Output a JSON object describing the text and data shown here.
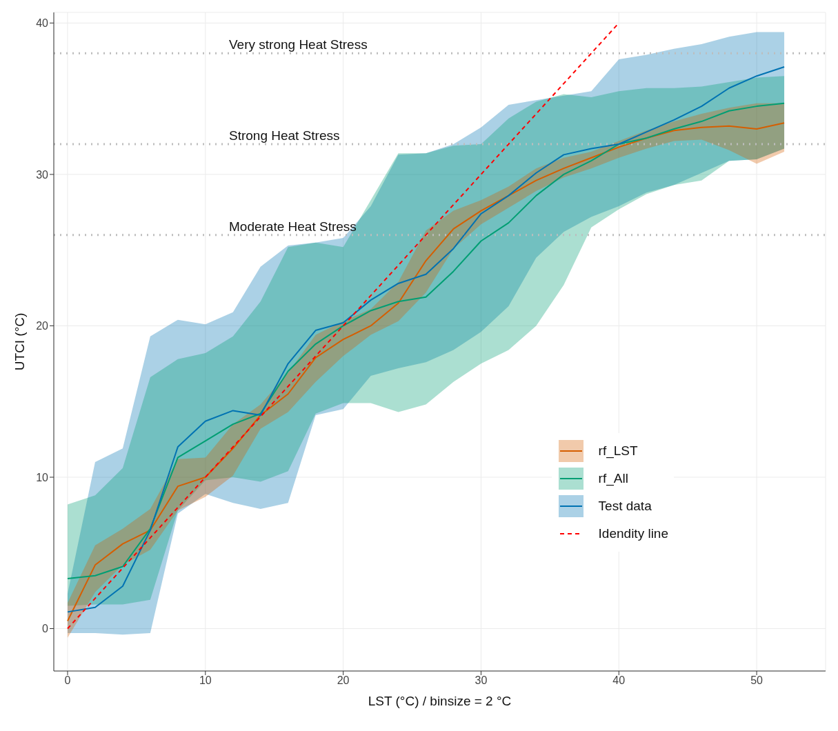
{
  "chart_data": {
    "type": "line",
    "xlabel": "LST (°C) / binsize = 2 °C",
    "ylabel": "UTCI (°C)",
    "x": [
      0,
      2,
      4,
      6,
      8,
      10,
      12,
      14,
      16,
      18,
      20,
      22,
      24,
      26,
      28,
      30,
      32,
      34,
      36,
      38,
      40,
      42,
      44,
      46,
      48,
      50,
      52
    ],
    "xlim": [
      -1,
      55
    ],
    "xticks": [
      0,
      10,
      20,
      30,
      40,
      50
    ],
    "ylim": [
      -2.8,
      40.7
    ],
    "yticks": [
      0,
      10,
      20,
      30,
      40
    ],
    "grid": true,
    "legend": "right",
    "series": [
      {
        "name": "rf_LST",
        "color": "#d55e00",
        "values": [
          0.5,
          4.2,
          5.6,
          6.5,
          9.4,
          10.0,
          11.9,
          14.1,
          15.5,
          17.9,
          19.1,
          20.0,
          21.5,
          24.3,
          26.4,
          27.6,
          28.6,
          29.6,
          30.4,
          31.1,
          31.8,
          32.4,
          32.9,
          33.1,
          33.2,
          33.0,
          33.4
        ],
        "lower": [
          -0.6,
          2.4,
          4.2,
          5.2,
          7.8,
          8.7,
          10.1,
          13.2,
          14.3,
          16.3,
          18.0,
          19.4,
          20.3,
          22.2,
          25.1,
          26.7,
          27.8,
          28.9,
          29.8,
          30.4,
          31.1,
          31.7,
          32.2,
          32.3,
          31.6,
          30.7,
          31.5
        ],
        "upper": [
          1.7,
          5.5,
          6.6,
          7.9,
          11.2,
          11.3,
          13.5,
          14.8,
          16.9,
          19.4,
          20.3,
          21.1,
          22.9,
          26.3,
          27.6,
          28.3,
          29.2,
          30.4,
          31.1,
          31.5,
          32.2,
          32.9,
          33.5,
          34.0,
          34.4,
          34.7,
          34.7
        ]
      },
      {
        "name": "rf_All",
        "color": "#009e73",
        "values": [
          3.3,
          3.5,
          4.1,
          6.6,
          11.3,
          12.4,
          13.5,
          14.2,
          17.0,
          18.8,
          20.0,
          21.0,
          21.6,
          21.9,
          23.6,
          25.6,
          26.8,
          28.6,
          30.0,
          30.9,
          32.0,
          32.4,
          33.0,
          33.5,
          34.2,
          34.5,
          34.7
        ],
        "lower": [
          1.5,
          1.6,
          1.6,
          1.9,
          7.8,
          9.8,
          10.0,
          9.7,
          10.4,
          14.2,
          14.9,
          14.9,
          14.3,
          14.8,
          16.3,
          17.5,
          18.4,
          20.0,
          22.7,
          26.5,
          27.7,
          28.7,
          29.3,
          29.6,
          30.9,
          31.0,
          31.7
        ],
        "upper": [
          8.2,
          8.8,
          10.6,
          16.6,
          17.8,
          18.2,
          19.3,
          21.6,
          25.2,
          25.5,
          25.2,
          28.3,
          31.4,
          31.4,
          31.9,
          32.0,
          33.7,
          34.8,
          35.3,
          35.1,
          35.5,
          35.7,
          35.7,
          35.8,
          36.1,
          36.4,
          36.5
        ]
      },
      {
        "name": "Test data",
        "color": "#0072b2",
        "values": [
          1.1,
          1.4,
          2.8,
          6.5,
          12.0,
          13.7,
          14.4,
          14.1,
          17.5,
          19.7,
          20.2,
          21.7,
          22.8,
          23.4,
          25.1,
          27.4,
          28.6,
          30.1,
          31.3,
          31.7,
          32.0,
          32.8,
          33.6,
          34.5,
          35.7,
          36.5,
          37.1
        ],
        "lower": [
          -0.3,
          -0.3,
          -0.4,
          -0.3,
          7.6,
          8.9,
          8.3,
          7.9,
          8.3,
          14.1,
          14.5,
          16.7,
          17.2,
          17.6,
          18.4,
          19.6,
          21.3,
          24.5,
          26.2,
          27.2,
          27.9,
          28.8,
          29.3,
          30.1,
          30.9,
          31.0,
          31.7
        ],
        "upper": [
          2.3,
          11.0,
          11.9,
          19.3,
          20.4,
          20.1,
          20.9,
          23.9,
          25.3,
          25.5,
          25.8,
          27.9,
          31.3,
          31.4,
          32.0,
          33.1,
          34.6,
          34.9,
          35.2,
          35.5,
          37.6,
          37.9,
          38.3,
          38.6,
          39.1,
          39.4,
          39.4
        ]
      },
      {
        "name": "Idendity line",
        "type": "line",
        "color": "#ff0000",
        "line_style": "dashed",
        "x": [
          0,
          40
        ],
        "values": [
          0,
          40
        ]
      }
    ],
    "ref_lines": [
      {
        "axis": "y",
        "value": 38,
        "label": "Very strong Heat Stress",
        "color": "#bdbdbd",
        "line_style": "dotted"
      },
      {
        "axis": "y",
        "value": 32,
        "label": "Strong Heat Stress",
        "color": "#bdbdbd",
        "line_style": "dotted"
      },
      {
        "axis": "y",
        "value": 26,
        "label": "Moderate Heat Stress",
        "color": "#bdbdbd",
        "line_style": "dotted"
      }
    ]
  }
}
